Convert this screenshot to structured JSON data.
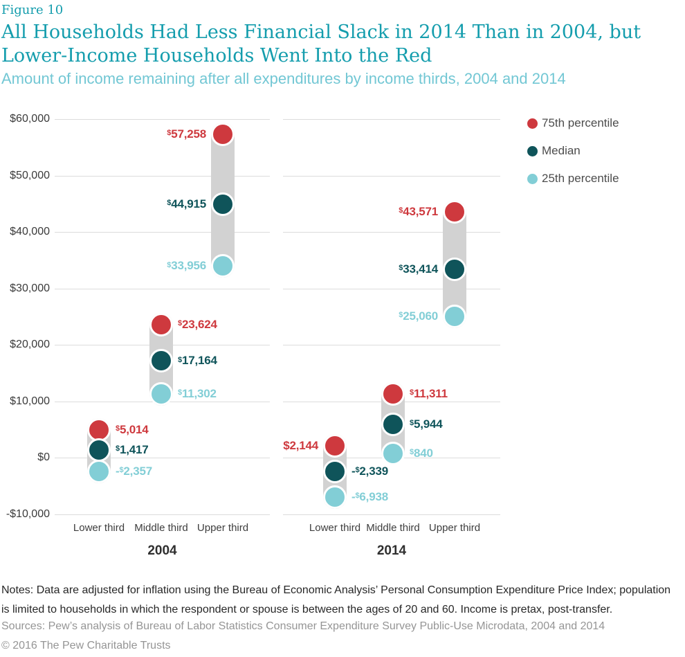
{
  "header": {
    "figure_label": "Figure 10",
    "title_line1": "All Households Had Less Financial Slack in 2014 Than in 2004, but",
    "title_line2": "Lower-Income Households Went Into the Red",
    "subtitle": "Amount of income remaining after all expenditures by income thirds, 2004 and 2014"
  },
  "colors": {
    "accent_teal": "#149dad",
    "subtitle_teal": "#72c7d4",
    "red": "#ce393e",
    "dark_teal": "#0f545a",
    "light_teal": "#82ced6",
    "band_gray": "#d2d2d2",
    "gridline_gray": "#dcdcdc"
  },
  "chart_data": {
    "type": "scatter",
    "title": "Amount of income remaining after all expenditures by income thirds, 2004 and 2014",
    "y_axis": {
      "range": [
        -10000,
        60000
      ],
      "grid": true,
      "ticks": [
        {
          "value": 60000,
          "label": "$60,000"
        },
        {
          "value": 50000,
          "label": "$50,000"
        },
        {
          "value": 40000,
          "label": "$40,000"
        },
        {
          "value": 30000,
          "label": "$30,000"
        },
        {
          "value": 20000,
          "label": "$20,000"
        },
        {
          "value": 10000,
          "label": "$10,000"
        },
        {
          "value": 0,
          "label": "$0"
        },
        {
          "value": -10000,
          "label": "-$10,000"
        }
      ]
    },
    "series": [
      {
        "name": "75th percentile",
        "color": "#ce393e"
      },
      {
        "name": "Median",
        "color": "#0f545a"
      },
      {
        "name": "25th percentile",
        "color": "#82ced6"
      }
    ],
    "legend_position": "top-right",
    "panels": [
      {
        "year": "2004",
        "groups": [
          {
            "category": "Lower third",
            "points": [
              {
                "series": "75th percentile",
                "value": 5014,
                "label": "$5,014",
                "label_side": "right",
                "sup_dollar": true
              },
              {
                "series": "Median",
                "value": 1417,
                "label": "$1,417",
                "label_side": "right",
                "sup_dollar": true
              },
              {
                "series": "25th percentile",
                "value": -2357,
                "label": "-$2,357",
                "label_side": "right",
                "sup_dollar": true
              }
            ]
          },
          {
            "category": "Middle third",
            "points": [
              {
                "series": "75th percentile",
                "value": 23624,
                "label": "$23,624",
                "label_side": "right",
                "sup_dollar": true
              },
              {
                "series": "Median",
                "value": 17164,
                "label": "$17,164",
                "label_side": "right",
                "sup_dollar": true
              },
              {
                "series": "25th percentile",
                "value": 11302,
                "label": "$11,302",
                "label_side": "right",
                "sup_dollar": true
              }
            ]
          },
          {
            "category": "Upper third",
            "points": [
              {
                "series": "75th percentile",
                "value": 57258,
                "label": "$57,258",
                "label_side": "left",
                "sup_dollar": true
              },
              {
                "series": "Median",
                "value": 44915,
                "label": "$44,915",
                "label_side": "left",
                "sup_dollar": true
              },
              {
                "series": "25th percentile",
                "value": 33956,
                "label": "$33,956",
                "label_side": "left",
                "sup_dollar": true
              }
            ]
          }
        ]
      },
      {
        "year": "2014",
        "groups": [
          {
            "category": "Lower third",
            "points": [
              {
                "series": "75th percentile",
                "value": 2144,
                "label": "$2,144",
                "label_side": "left",
                "sup_dollar": false
              },
              {
                "series": "Median",
                "value": -2339,
                "label": "-$2,339",
                "label_side": "right",
                "sup_dollar": true
              },
              {
                "series": "25th percentile",
                "value": -6938,
                "label": "-$6,938",
                "label_side": "right",
                "sup_dollar": true
              }
            ]
          },
          {
            "category": "Middle third",
            "points": [
              {
                "series": "75th percentile",
                "value": 11311,
                "label": "$11,311",
                "label_side": "right",
                "sup_dollar": true
              },
              {
                "series": "Median",
                "value": 5944,
                "label": "$5,944",
                "label_side": "right",
                "sup_dollar": true
              },
              {
                "series": "25th percentile",
                "value": 840,
                "label": "$840",
                "label_side": "right",
                "sup_dollar": true
              }
            ]
          },
          {
            "category": "Upper third",
            "points": [
              {
                "series": "75th percentile",
                "value": 43571,
                "label": "$43,571",
                "label_side": "left",
                "sup_dollar": true
              },
              {
                "series": "Median",
                "value": 33414,
                "label": "$33,414",
                "label_side": "left",
                "sup_dollar": true
              },
              {
                "series": "25th percentile",
                "value": 25060,
                "label": "$25,060",
                "label_side": "left",
                "sup_dollar": true
              }
            ]
          }
        ]
      }
    ]
  },
  "footer": {
    "notes": "Notes: Data are adjusted for inflation using the Bureau of Economic Analysis’ Personal Consumption Expenditure Price Index; population is limited to households in which the respondent or spouse is between the ages of 20 and 60. Income is pretax, post-transfer.",
    "sources": "Sources: Pew’s analysis of Bureau of Labor Statistics Consumer Expenditure Survey Public-Use Microdata, 2004 and 2014",
    "copyright": "© 2016 The Pew Charitable Trusts"
  }
}
